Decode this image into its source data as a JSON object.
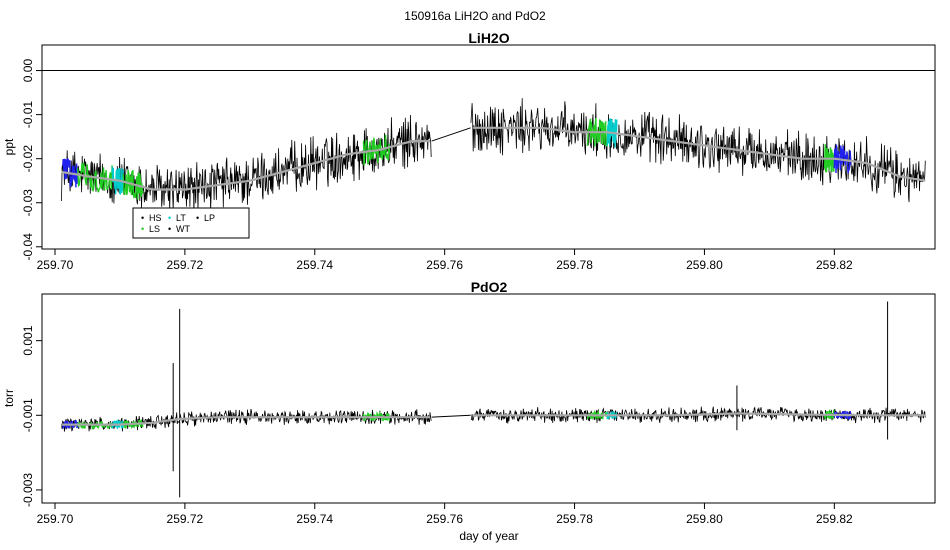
{
  "figure_title": "150916a   LiH2O and PdO2",
  "legend_entries": [
    {
      "label": "HS",
      "color": "#000000"
    },
    {
      "label": "LS",
      "color": "#22cc22"
    },
    {
      "label": "LT",
      "color": "#00cccc"
    },
    {
      "label": "WT",
      "color": "#000000"
    },
    {
      "label": "LP",
      "color": "#000000"
    }
  ],
  "chart_data": [
    {
      "type": "line",
      "title": "LiH2O",
      "xlabel": "",
      "ylabel": "ppt",
      "xlim": [
        259.698,
        259.8355
      ],
      "ylim": [
        -0.0405,
        0.0058
      ],
      "x_ticks": [
        259.7,
        259.72,
        259.74,
        259.76,
        259.78,
        259.8,
        259.82
      ],
      "x_tick_labels": [
        "259.70",
        "259.72",
        "259.74",
        "259.76",
        "259.78",
        "259.80",
        "259.82"
      ],
      "y_ticks": [
        0.0,
        -0.01,
        -0.02,
        -0.03,
        -0.04
      ],
      "y_tick_labels": [
        "0.00",
        "-0.01",
        "-0.02",
        "-0.03",
        "-0.04"
      ],
      "reference_line": 0.0,
      "series": [
        {
          "name": "raw",
          "color": "#000000",
          "x": [
            259.701,
            259.705,
            259.71,
            259.715,
            259.72,
            259.725,
            259.73,
            259.735,
            259.74,
            259.745,
            259.75,
            259.755,
            259.758,
            259.764,
            259.77,
            259.775,
            259.78,
            259.785,
            259.79,
            259.795,
            259.8,
            259.805,
            259.81,
            259.815,
            259.82,
            259.825,
            259.83,
            259.834
          ],
          "values": [
            -0.023,
            -0.024,
            -0.025,
            -0.027,
            -0.027,
            -0.026,
            -0.025,
            -0.023,
            -0.021,
            -0.019,
            -0.018,
            -0.016,
            -0.016,
            -0.013,
            -0.013,
            -0.013,
            -0.014,
            -0.014,
            -0.015,
            -0.016,
            -0.017,
            -0.018,
            -0.019,
            -0.02,
            -0.02,
            -0.021,
            -0.024,
            -0.025
          ]
        },
        {
          "name": "smoothed",
          "color": "#a8a8a8",
          "x": [
            259.701,
            259.705,
            259.71,
            259.715,
            259.72,
            259.725,
            259.73,
            259.735,
            259.74,
            259.745,
            259.75,
            259.755,
            259.758,
            259.764,
            259.77,
            259.775,
            259.78,
            259.785,
            259.79,
            259.795,
            259.8,
            259.805,
            259.81,
            259.815,
            259.82,
            259.825,
            259.83,
            259.834
          ],
          "values": [
            -0.023,
            -0.024,
            -0.025,
            -0.027,
            -0.027,
            -0.026,
            -0.025,
            -0.023,
            -0.021,
            -0.019,
            -0.018,
            -0.016,
            -0.016,
            -0.013,
            -0.013,
            -0.013,
            -0.014,
            -0.014,
            -0.015,
            -0.016,
            -0.017,
            -0.018,
            -0.019,
            -0.02,
            -0.02,
            -0.021,
            -0.024,
            -0.025
          ]
        }
      ],
      "highlight_segments": [
        {
          "label": "HS",
          "color": "#2222ee",
          "x_start": 259.7012,
          "x_end": 259.7035
        },
        {
          "label": "LS",
          "color": "#22cc22",
          "x_start": 259.7035,
          "x_end": 259.7088
        },
        {
          "label": "LT",
          "color": "#00cccc",
          "x_start": 259.7088,
          "x_end": 259.7105
        },
        {
          "label": "LS",
          "color": "#22cc22",
          "x_start": 259.7105,
          "x_end": 259.7135
        },
        {
          "label": "LS",
          "color": "#22cc22",
          "x_start": 259.7475,
          "x_end": 259.7515
        },
        {
          "label": "LS",
          "color": "#22cc22",
          "x_start": 259.782,
          "x_end": 259.785
        },
        {
          "label": "LT",
          "color": "#00cccc",
          "x_start": 259.785,
          "x_end": 259.7865
        },
        {
          "label": "LS",
          "color": "#22cc22",
          "x_start": 259.8185,
          "x_end": 259.82
        },
        {
          "label": "HS",
          "color": "#2222ee",
          "x_start": 259.82,
          "x_end": 259.8225
        }
      ]
    },
    {
      "type": "line",
      "title": "PdO2",
      "xlabel": "day of year",
      "ylabel": "torr",
      "xlim": [
        259.698,
        259.8355
      ],
      "ylim": [
        -0.00335,
        0.00225
      ],
      "x_ticks": [
        259.7,
        259.72,
        259.74,
        259.76,
        259.78,
        259.8,
        259.82
      ],
      "x_tick_labels": [
        "259.70",
        "259.72",
        "259.74",
        "259.76",
        "259.78",
        "259.80",
        "259.82"
      ],
      "y_ticks": [
        0.001,
        -0.001,
        -0.003
      ],
      "y_tick_labels": [
        "0.001",
        "-0.001",
        "-0.003"
      ],
      "series": [
        {
          "name": "raw",
          "color": "#000000",
          "x": [
            259.701,
            259.71,
            259.715,
            259.719,
            259.725,
            259.735,
            259.745,
            259.758,
            259.764,
            259.775,
            259.785,
            259.795,
            259.805,
            259.815,
            259.825,
            259.834
          ],
          "values": [
            -0.00125,
            -0.00125,
            -0.0012,
            -0.0011,
            -0.00105,
            -0.00105,
            -0.00105,
            -0.00105,
            -0.001,
            -0.001,
            -0.001,
            -0.001,
            -0.00095,
            -0.00098,
            -0.001,
            -0.001
          ]
        },
        {
          "name": "smoothed",
          "color": "#a8a8a8",
          "x": [
            259.701,
            259.71,
            259.715,
            259.719,
            259.725,
            259.735,
            259.745,
            259.758,
            259.764,
            259.775,
            259.785,
            259.795,
            259.805,
            259.815,
            259.825,
            259.834
          ],
          "values": [
            -0.00125,
            -0.00125,
            -0.0012,
            -0.0011,
            -0.00105,
            -0.00105,
            -0.00105,
            -0.00105,
            -0.001,
            -0.001,
            -0.001,
            -0.001,
            -0.00095,
            -0.00098,
            -0.001,
            -0.001
          ]
        }
      ],
      "spikes": [
        {
          "x": 259.7192,
          "high": 0.00185,
          "low": -0.0032
        },
        {
          "x": 259.7182,
          "high": 0.0004,
          "low": -0.0025
        },
        {
          "x": 259.805,
          "high": -0.0002,
          "low": -0.0014
        },
        {
          "x": 259.8282,
          "high": 0.00205,
          "low": -0.00165
        }
      ],
      "highlight_segments": [
        {
          "label": "HS",
          "color": "#2222ee",
          "x_start": 259.7012,
          "x_end": 259.7035
        },
        {
          "label": "LS",
          "color": "#22cc22",
          "x_start": 259.7035,
          "x_end": 259.7088
        },
        {
          "label": "LT",
          "color": "#00cccc",
          "x_start": 259.7088,
          "x_end": 259.7105
        },
        {
          "label": "LS",
          "color": "#22cc22",
          "x_start": 259.7105,
          "x_end": 259.7135
        },
        {
          "label": "LS",
          "color": "#22cc22",
          "x_start": 259.7475,
          "x_end": 259.7515
        },
        {
          "label": "LS",
          "color": "#22cc22",
          "x_start": 259.782,
          "x_end": 259.785
        },
        {
          "label": "LT",
          "color": "#00cccc",
          "x_start": 259.785,
          "x_end": 259.7865
        },
        {
          "label": "LS",
          "color": "#22cc22",
          "x_start": 259.8185,
          "x_end": 259.82
        },
        {
          "label": "HS",
          "color": "#2222ee",
          "x_start": 259.82,
          "x_end": 259.8225
        }
      ]
    }
  ]
}
